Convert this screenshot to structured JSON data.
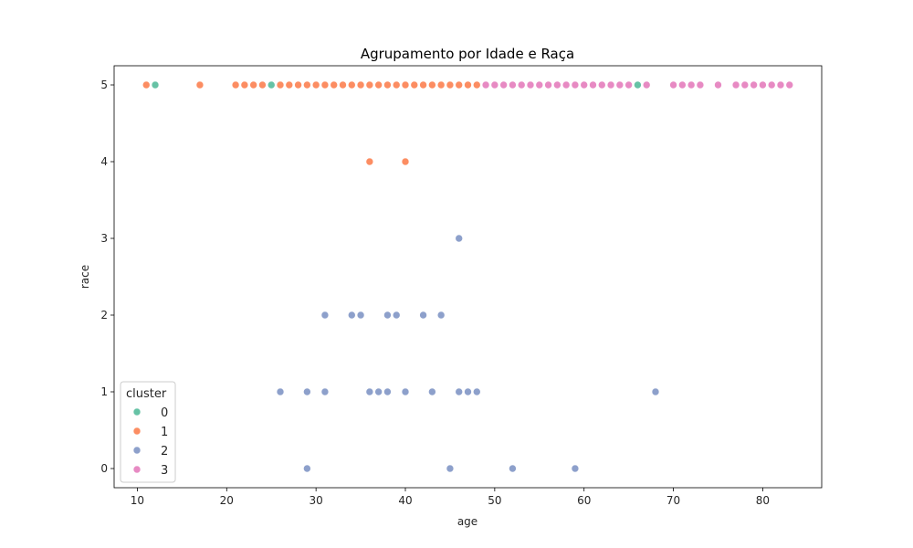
{
  "chart_data": {
    "type": "scatter",
    "title": "Agrupamento por Idade e Raça",
    "xlabel": "age",
    "ylabel": "race",
    "xlim": [
      7.4,
      86.6
    ],
    "ylim": [
      -0.25,
      5.25
    ],
    "xticks": [
      10,
      20,
      30,
      40,
      50,
      60,
      70,
      80
    ],
    "yticks": [
      0,
      1,
      2,
      3,
      4,
      5
    ],
    "grid": false,
    "legend": {
      "title": "cluster",
      "location": "lower-left"
    },
    "series": [
      {
        "name": "0",
        "color": "#66c2a5",
        "points": [
          [
            12,
            5
          ],
          [
            25,
            5
          ],
          [
            66,
            5
          ]
        ]
      },
      {
        "name": "1",
        "color": "#fc8d62",
        "points": [
          [
            11,
            5
          ],
          [
            17,
            5
          ],
          [
            21,
            5
          ],
          [
            22,
            5
          ],
          [
            23,
            5
          ],
          [
            24,
            5
          ],
          [
            26,
            5
          ],
          [
            27,
            5
          ],
          [
            28,
            5
          ],
          [
            29,
            5
          ],
          [
            30,
            5
          ],
          [
            31,
            5
          ],
          [
            32,
            5
          ],
          [
            33,
            5
          ],
          [
            34,
            5
          ],
          [
            35,
            5
          ],
          [
            36,
            5
          ],
          [
            37,
            5
          ],
          [
            38,
            5
          ],
          [
            39,
            5
          ],
          [
            40,
            5
          ],
          [
            41,
            5
          ],
          [
            42,
            5
          ],
          [
            43,
            5
          ],
          [
            44,
            5
          ],
          [
            45,
            5
          ],
          [
            46,
            5
          ],
          [
            47,
            5
          ],
          [
            48,
            5
          ],
          [
            36,
            4
          ],
          [
            40,
            4
          ]
        ]
      },
      {
        "name": "2",
        "color": "#8da0cb",
        "points": [
          [
            46,
            3
          ],
          [
            31,
            2
          ],
          [
            34,
            2
          ],
          [
            35,
            2
          ],
          [
            38,
            2
          ],
          [
            39,
            2
          ],
          [
            42,
            2
          ],
          [
            44,
            2
          ],
          [
            26,
            1
          ],
          [
            29,
            1
          ],
          [
            31,
            1
          ],
          [
            36,
            1
          ],
          [
            37,
            1
          ],
          [
            38,
            1
          ],
          [
            40,
            1
          ],
          [
            43,
            1
          ],
          [
            46,
            1
          ],
          [
            47,
            1
          ],
          [
            48,
            1
          ],
          [
            68,
            1
          ],
          [
            29,
            0
          ],
          [
            45,
            0
          ],
          [
            52,
            0
          ],
          [
            59,
            0
          ]
        ]
      },
      {
        "name": "3",
        "color": "#e78ac3",
        "points": [
          [
            49,
            5
          ],
          [
            50,
            5
          ],
          [
            51,
            5
          ],
          [
            52,
            5
          ],
          [
            53,
            5
          ],
          [
            54,
            5
          ],
          [
            55,
            5
          ],
          [
            56,
            5
          ],
          [
            57,
            5
          ],
          [
            58,
            5
          ],
          [
            59,
            5
          ],
          [
            60,
            5
          ],
          [
            61,
            5
          ],
          [
            62,
            5
          ],
          [
            63,
            5
          ],
          [
            64,
            5
          ],
          [
            65,
            5
          ],
          [
            67,
            5
          ],
          [
            70,
            5
          ],
          [
            71,
            5
          ],
          [
            72,
            5
          ],
          [
            73,
            5
          ],
          [
            75,
            5
          ],
          [
            77,
            5
          ],
          [
            78,
            5
          ],
          [
            79,
            5
          ],
          [
            80,
            5
          ],
          [
            81,
            5
          ],
          [
            82,
            5
          ],
          [
            83,
            5
          ]
        ]
      }
    ]
  }
}
